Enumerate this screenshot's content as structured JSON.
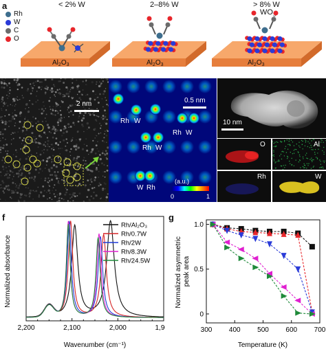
{
  "panel_letters": {
    "a": "a",
    "b": "b",
    "c": "c",
    "d": "d",
    "e": "e",
    "f": "f",
    "g": "g"
  },
  "panel_a": {
    "legend": [
      {
        "label": "Rh",
        "color": "#3e6e8e"
      },
      {
        "label": "W",
        "color": "#2a3bd8"
      },
      {
        "label": "C",
        "color": "#6b6b6b"
      },
      {
        "label": "O",
        "color": "#e8262b"
      }
    ],
    "conditions": [
      "< 2% W",
      "2–8% W",
      "> 8% W"
    ],
    "extra_label": "WO",
    "extra_label_sub": "3",
    "substrate_label": "Al",
    "substrate_sub1": "2",
    "substrate_mid": "O",
    "substrate_sub2": "3"
  },
  "panel_b": {
    "scale": "2 nm"
  },
  "panel_c": {
    "scale": "0.5 nm",
    "rh": "Rh",
    "w": "W",
    "colorbar_unit": "(a.u.)",
    "colorbar_min": "0",
    "colorbar_max": "1"
  },
  "panel_d": {
    "scale": "10 nm"
  },
  "panel_e": {
    "o": "O",
    "al": "Al",
    "rh": "Rh",
    "w": "W"
  },
  "chart_data": [
    {
      "type": "line",
      "xlabel": "Wavenumber (cm⁻¹)",
      "ylabel": "Normalized absorbance",
      "xlim": [
        2200,
        1900
      ],
      "xticks": [
        "2,200",
        "2,100",
        "2,000",
        "1,900"
      ],
      "series": [
        {
          "name": "Rh/Al₂O₃",
          "color": "#111111",
          "peaks": [
            [
              2094,
              0.95,
              8
            ],
            [
              2016,
              1.0,
              10
            ]
          ]
        },
        {
          "name": "Rh/0.7W",
          "color": "#d62728",
          "peaks": [
            [
              2103,
              1.0,
              6
            ],
            [
              2031,
              0.86,
              7
            ]
          ]
        },
        {
          "name": "Rh/2W",
          "color": "#1f3ad8",
          "peaks": [
            [
              2106,
              1.0,
              5.5
            ],
            [
              2038,
              0.84,
              6
            ]
          ]
        },
        {
          "name": "Rh/8.3W",
          "color": "#e020d0",
          "peaks": [
            [
              2108,
              1.0,
              5
            ],
            [
              2041,
              0.87,
              5.5
            ]
          ]
        },
        {
          "name": "Rh/24.5W",
          "color": "#1f8a3a",
          "peaks": [
            [
              2108,
              0.97,
              5
            ],
            [
              2043,
              0.83,
              5.5
            ]
          ]
        }
      ],
      "shoulder": [
        2150,
        0.12,
        10
      ]
    },
    {
      "type": "line",
      "xlabel": "Temperature (K)",
      "ylabel": "Normalized asymmetric peak area",
      "xlim": [
        300,
        700
      ],
      "ylim": [
        -0.1,
        1.05
      ],
      "xticks": [
        "300",
        "400",
        "500",
        "600",
        "700"
      ],
      "yticks": [
        "0",
        "0.5",
        "1.0"
      ],
      "series": [
        {
          "color": "#111111",
          "marker": "square",
          "points": [
            [
              323,
              1.0
            ],
            [
              373,
              0.96
            ],
            [
              423,
              0.95
            ],
            [
              473,
              0.93
            ],
            [
              523,
              0.92
            ],
            [
              573,
              0.92
            ],
            [
              623,
              0.9
            ],
            [
              673,
              0.75
            ]
          ]
        },
        {
          "color": "#e8262b",
          "marker": "triangle-up",
          "points": [
            [
              323,
              1.0
            ],
            [
              373,
              0.95
            ],
            [
              423,
              0.92
            ],
            [
              473,
              0.91
            ],
            [
              523,
              0.9
            ],
            [
              573,
              0.89
            ],
            [
              623,
              0.88
            ],
            [
              673,
              0.02
            ]
          ]
        },
        {
          "color": "#2a3bd8",
          "marker": "triangle-down",
          "points": [
            [
              323,
              1.0
            ],
            [
              373,
              0.93
            ],
            [
              423,
              0.88
            ],
            [
              473,
              0.84
            ],
            [
              523,
              0.78
            ],
            [
              573,
              0.65
            ],
            [
              623,
              0.5
            ],
            [
              673,
              0.02
            ]
          ]
        },
        {
          "color": "#e020d0",
          "marker": "triangle-left",
          "points": [
            [
              323,
              1.0
            ],
            [
              373,
              0.8
            ],
            [
              423,
              0.72
            ],
            [
              473,
              0.62
            ],
            [
              523,
              0.45
            ],
            [
              573,
              0.3
            ],
            [
              623,
              0.15
            ],
            [
              673,
              0.0
            ]
          ]
        },
        {
          "color": "#1f8a3a",
          "marker": "triangle-right",
          "points": [
            [
              323,
              1.0
            ],
            [
              373,
              0.74
            ],
            [
              423,
              0.62
            ],
            [
              473,
              0.52
            ],
            [
              523,
              0.42
            ],
            [
              573,
              0.2
            ],
            [
              623,
              0.01
            ],
            [
              673,
              0.0
            ]
          ]
        }
      ]
    }
  ]
}
